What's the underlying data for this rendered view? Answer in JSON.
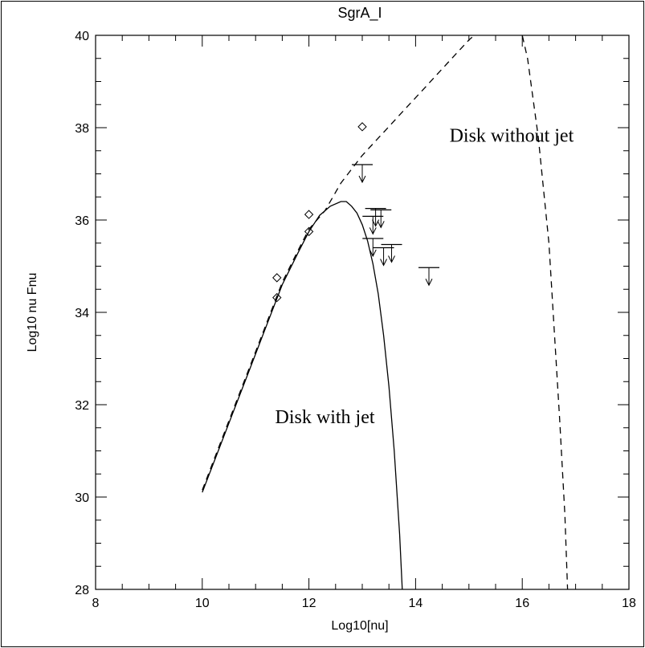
{
  "chart_data": {
    "type": "line",
    "title": "SgrA_I",
    "xlabel": "Log10[nu]",
    "ylabel": "Log10 nu Fnu",
    "xlim": [
      8,
      18
    ],
    "ylim": [
      28,
      40
    ],
    "x_ticks": [
      "8",
      "10",
      "12",
      "14",
      "16",
      "18"
    ],
    "y_ticks": [
      "28",
      "30",
      "32",
      "34",
      "36",
      "38",
      "40"
    ],
    "grid": false,
    "annotations": [
      {
        "text": "Disk without jet",
        "x": 15.8,
        "y": 37.7
      },
      {
        "text": "Disk with jet",
        "x": 12.3,
        "y": 31.6
      }
    ],
    "series": [
      {
        "style": "solid",
        "x": [
          10.0,
          10.3,
          10.6,
          10.9,
          11.2,
          11.5,
          11.8,
          12.0,
          12.2,
          12.4,
          12.6,
          12.7,
          12.8,
          12.9,
          13.0,
          13.1,
          13.2,
          13.3,
          13.4,
          13.5,
          13.6,
          13.7,
          13.75
        ],
        "y": [
          30.1,
          31.0,
          31.9,
          32.8,
          33.7,
          34.6,
          35.3,
          35.75,
          36.1,
          36.3,
          36.4,
          36.4,
          36.3,
          36.15,
          35.9,
          35.55,
          35.05,
          34.4,
          33.5,
          32.4,
          31.0,
          29.2,
          28.0
        ]
      },
      {
        "style": "dashed",
        "x": [
          10.0,
          10.3,
          10.6,
          10.9,
          11.2,
          11.5,
          11.8,
          12.0,
          12.3,
          12.6,
          13.0,
          13.4,
          13.8,
          14.2,
          14.6,
          15.0,
          15.2,
          15.6,
          15.9,
          16.0,
          16.1,
          16.3,
          16.5,
          16.7,
          16.8,
          16.85
        ],
        "y": [
          30.15,
          31.05,
          31.95,
          32.85,
          33.75,
          34.65,
          35.35,
          35.8,
          36.2,
          36.8,
          37.4,
          37.9,
          38.4,
          38.9,
          39.4,
          39.9,
          40.1,
          40.3,
          40.2,
          40.0,
          39.5,
          37.8,
          35.5,
          31.7,
          29.6,
          28.0
        ]
      }
    ],
    "points": [
      {
        "x": 11.4,
        "y": 34.75
      },
      {
        "x": 11.4,
        "y": 34.32
      },
      {
        "x": 12.0,
        "y": 36.12
      },
      {
        "x": 12.0,
        "y": 35.75
      },
      {
        "x": 13.0,
        "y": 38.02
      }
    ],
    "upper_limits": [
      {
        "x": 13.0,
        "y": 37.2
      },
      {
        "x": 13.25,
        "y": 36.25
      },
      {
        "x": 13.35,
        "y": 36.22
      },
      {
        "x": 13.2,
        "y": 36.08
      },
      {
        "x": 13.2,
        "y": 35.6
      },
      {
        "x": 13.55,
        "y": 35.47
      },
      {
        "x": 13.4,
        "y": 35.4
      },
      {
        "x": 14.25,
        "y": 34.97
      }
    ]
  }
}
